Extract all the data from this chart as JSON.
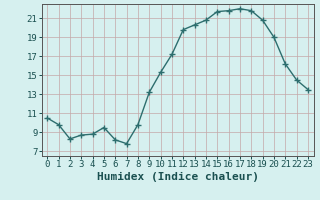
{
  "x": [
    0,
    1,
    2,
    3,
    4,
    5,
    6,
    7,
    8,
    9,
    10,
    11,
    12,
    13,
    14,
    15,
    16,
    17,
    18,
    19,
    20,
    21,
    22,
    23
  ],
  "y": [
    10.5,
    9.8,
    8.3,
    8.7,
    8.8,
    9.5,
    8.2,
    7.8,
    9.8,
    13.2,
    15.3,
    17.2,
    19.8,
    20.3,
    20.8,
    21.7,
    21.8,
    22.0,
    21.8,
    20.8,
    19.0,
    16.2,
    14.5,
    13.5
  ],
  "line_color": "#2d6e6e",
  "marker": "+",
  "marker_size": 4,
  "xlabel": "Humidex (Indice chaleur)",
  "xlim": [
    -0.5,
    23.5
  ],
  "ylim": [
    6.5,
    22.5
  ],
  "yticks": [
    7,
    9,
    11,
    13,
    15,
    17,
    19,
    21
  ],
  "xticks": [
    0,
    1,
    2,
    3,
    4,
    5,
    6,
    7,
    8,
    9,
    10,
    11,
    12,
    13,
    14,
    15,
    16,
    17,
    18,
    19,
    20,
    21,
    22,
    23
  ],
  "bg_color": "#d6f0ef",
  "plot_bg_color": "#d6f0ef",
  "grid_color": "#c4a8a8",
  "xlabel_fontsize": 8,
  "tick_fontsize": 6.5,
  "line_width": 1.0
}
